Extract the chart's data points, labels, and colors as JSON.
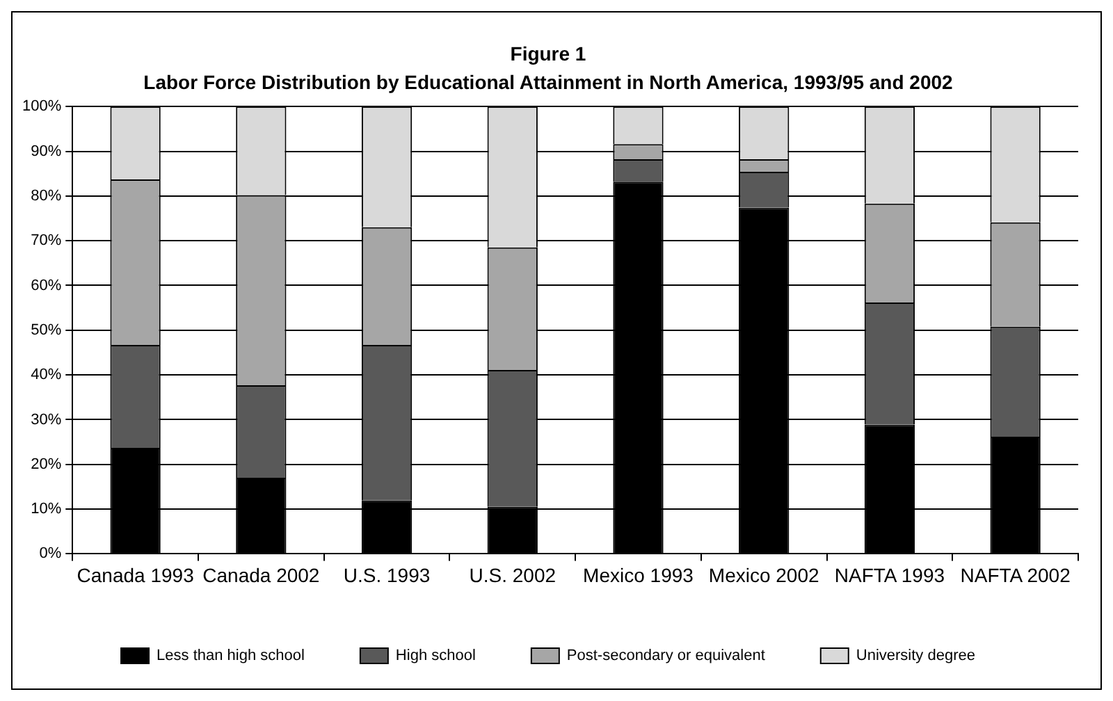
{
  "chart_data": {
    "type": "bar",
    "title": "Figure 1",
    "subtitle": "Labor Force Distribution by Educational Attainment in North America, 1993/95 and 2002",
    "categories": [
      "Canada 1993",
      "Canada 2002",
      "U.S. 1993",
      "U.S. 2002",
      "Mexico 1993",
      "Mexico 2002",
      "NAFTA 1993",
      "NAFTA 2002"
    ],
    "stacked": true,
    "series": [
      {
        "name": "Less than high school",
        "color": "#000000",
        "values": [
          23.7,
          17.0,
          11.9,
          10.5,
          83.2,
          77.4,
          28.9,
          26.2
        ]
      },
      {
        "name": "High school",
        "color": "#595959",
        "values": [
          23.0,
          20.7,
          34.8,
          30.6,
          5.0,
          8.0,
          27.3,
          24.6
        ]
      },
      {
        "name": "Post-secondary or equivalent",
        "color": "#a6a6a6",
        "values": [
          37.0,
          42.5,
          26.3,
          27.4,
          3.4,
          2.8,
          22.1,
          23.3
        ]
      },
      {
        "name": "University degree",
        "color": "#d9d9d9",
        "values": [
          16.3,
          19.8,
          27.0,
          31.5,
          8.4,
          11.8,
          21.7,
          25.9
        ]
      }
    ],
    "ylim": [
      0,
      100
    ],
    "yticks": [
      {
        "value": 0,
        "label": "0%"
      },
      {
        "value": 10,
        "label": "10%"
      },
      {
        "value": 20,
        "label": "20%"
      },
      {
        "value": 30,
        "label": "30%"
      },
      {
        "value": 40,
        "label": "40%"
      },
      {
        "value": 50,
        "label": "50%"
      },
      {
        "value": 60,
        "label": "60%"
      },
      {
        "value": 70,
        "label": "70%"
      },
      {
        "value": 80,
        "label": "80%"
      },
      {
        "value": 90,
        "label": "90%"
      },
      {
        "value": 100,
        "label": "100%"
      }
    ],
    "grid": "y",
    "legend": "bottom"
  }
}
